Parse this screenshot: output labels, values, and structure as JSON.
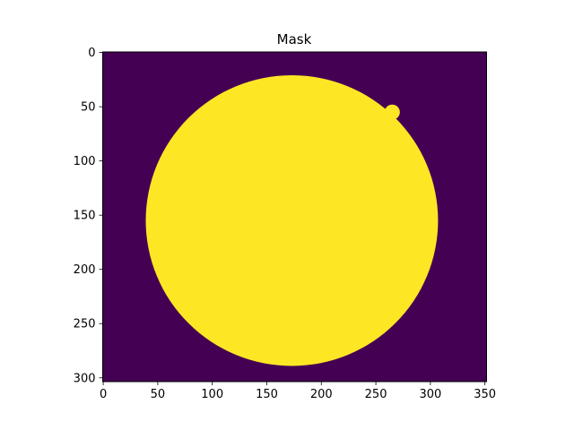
{
  "chart_data": {
    "type": "heatmap",
    "title": "Mask",
    "xlabel": "",
    "ylabel": "",
    "image_size": [
      352,
      304
    ],
    "xlim": [
      -0.5,
      351.5
    ],
    "ylim": [
      303.5,
      -0.5
    ],
    "y_inverted": true,
    "x_ticks": [
      0,
      50,
      100,
      150,
      200,
      250,
      300,
      350
    ],
    "y_ticks": [
      0,
      50,
      100,
      150,
      200,
      250,
      300
    ],
    "colormap": "viridis",
    "values": {
      "background": 0,
      "mask": 1
    },
    "colors": {
      "background": "#440154",
      "mask": "#fde725"
    },
    "mask_shape": {
      "circle_center": [
        173,
        155
      ],
      "circle_radius": 134,
      "bump_center": [
        265,
        55
      ],
      "bump_radius": 7
    },
    "grid": false,
    "legend": "none"
  }
}
